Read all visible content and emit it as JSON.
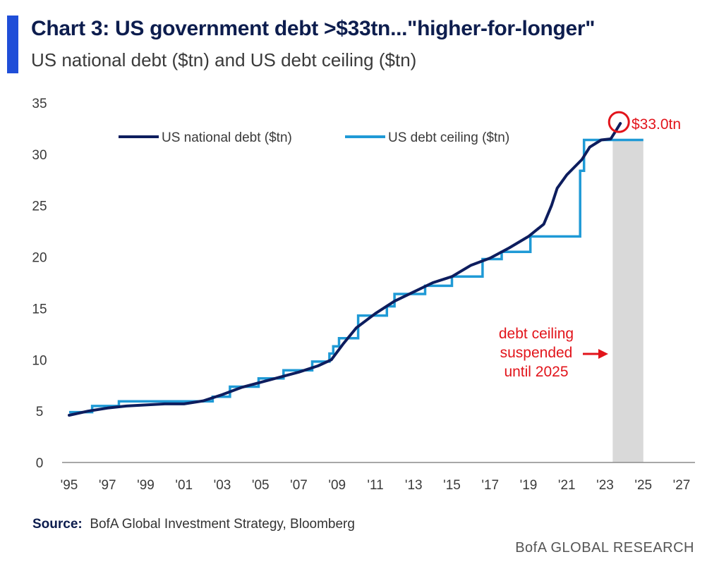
{
  "header": {
    "title": "Chart 3: US government debt >$33tn...\"higher-for-longer\"",
    "subtitle": "US national debt ($tn) and US debt ceiling ($tn)"
  },
  "footer": {
    "source_label": "Source:",
    "source_text": "BofA Global Investment Strategy, Bloomberg",
    "brand": "BofA GLOBAL RESEARCH"
  },
  "colors": {
    "accent": "#1f4ed8",
    "debt": "#0d1d5e",
    "ceiling": "#1f9ad6",
    "annotation": "#e2141b",
    "shade": "#d9d9d9"
  },
  "chart_data": {
    "type": "line",
    "title": "US national debt ($tn) and US debt ceiling ($tn)",
    "xlim": [
      1995,
      2028
    ],
    "ylim": [
      0,
      35
    ],
    "y_ticks": [
      0,
      5,
      10,
      15,
      20,
      25,
      30,
      35
    ],
    "x_ticks": [
      {
        "value": 1995,
        "label": "'95"
      },
      {
        "value": 1997,
        "label": "'97"
      },
      {
        "value": 1999,
        "label": "'99"
      },
      {
        "value": 2001,
        "label": "'01"
      },
      {
        "value": 2003,
        "label": "'03"
      },
      {
        "value": 2005,
        "label": "'05"
      },
      {
        "value": 2007,
        "label": "'07"
      },
      {
        "value": 2009,
        "label": "'09"
      },
      {
        "value": 2011,
        "label": "'11"
      },
      {
        "value": 2013,
        "label": "'13"
      },
      {
        "value": 2015,
        "label": "'15"
      },
      {
        "value": 2017,
        "label": "'17"
      },
      {
        "value": 2019,
        "label": "'19"
      },
      {
        "value": 2021,
        "label": "'21"
      },
      {
        "value": 2023,
        "label": "'23"
      },
      {
        "value": 2025,
        "label": "'25"
      },
      {
        "value": 2027,
        "label": "'27"
      }
    ],
    "grid": false,
    "legend_position": "top",
    "series": [
      {
        "name": "US national debt ($tn)",
        "style": "line",
        "points": [
          [
            1995.0,
            4.6
          ],
          [
            1996.0,
            5.0
          ],
          [
            1997.0,
            5.3
          ],
          [
            1998.0,
            5.5
          ],
          [
            1999.0,
            5.6
          ],
          [
            2000.0,
            5.7
          ],
          [
            2001.0,
            5.7
          ],
          [
            2002.0,
            6.0
          ],
          [
            2003.0,
            6.6
          ],
          [
            2004.0,
            7.3
          ],
          [
            2005.0,
            7.8
          ],
          [
            2006.0,
            8.3
          ],
          [
            2007.0,
            8.8
          ],
          [
            2008.0,
            9.4
          ],
          [
            2008.7,
            10.0
          ],
          [
            2009.3,
            11.5
          ],
          [
            2010.0,
            13.1
          ],
          [
            2011.0,
            14.5
          ],
          [
            2012.0,
            15.7
          ],
          [
            2013.0,
            16.6
          ],
          [
            2014.0,
            17.5
          ],
          [
            2015.0,
            18.1
          ],
          [
            2016.0,
            19.2
          ],
          [
            2017.0,
            19.9
          ],
          [
            2018.0,
            20.9
          ],
          [
            2019.0,
            22.0
          ],
          [
            2019.8,
            23.2
          ],
          [
            2020.2,
            25.0
          ],
          [
            2020.5,
            26.7
          ],
          [
            2021.0,
            28.0
          ],
          [
            2021.8,
            29.5
          ],
          [
            2022.2,
            30.7
          ],
          [
            2022.8,
            31.4
          ],
          [
            2023.3,
            31.5
          ],
          [
            2023.6,
            32.4
          ],
          [
            2023.8,
            33.0
          ]
        ]
      },
      {
        "name": "US debt ceiling ($tn)",
        "style": "step",
        "points": [
          [
            1995.0,
            4.9
          ],
          [
            1996.2,
            4.9
          ],
          [
            1996.2,
            5.5
          ],
          [
            1997.6,
            5.5
          ],
          [
            1997.6,
            5.95
          ],
          [
            2002.5,
            5.95
          ],
          [
            2002.5,
            6.4
          ],
          [
            2003.4,
            6.4
          ],
          [
            2003.4,
            7.38
          ],
          [
            2004.9,
            7.38
          ],
          [
            2004.9,
            8.18
          ],
          [
            2006.2,
            8.18
          ],
          [
            2006.2,
            8.97
          ],
          [
            2007.7,
            8.97
          ],
          [
            2007.7,
            9.82
          ],
          [
            2008.6,
            9.82
          ],
          [
            2008.6,
            10.6
          ],
          [
            2008.8,
            10.6
          ],
          [
            2008.8,
            11.3
          ],
          [
            2009.1,
            11.3
          ],
          [
            2009.1,
            12.1
          ],
          [
            2010.1,
            12.1
          ],
          [
            2010.1,
            14.3
          ],
          [
            2011.6,
            14.3
          ],
          [
            2011.6,
            15.2
          ],
          [
            2012.0,
            15.2
          ],
          [
            2012.0,
            16.4
          ],
          [
            2013.6,
            16.4
          ],
          [
            2013.6,
            17.2
          ],
          [
            2015.0,
            17.2
          ],
          [
            2015.0,
            18.1
          ],
          [
            2016.6,
            18.1
          ],
          [
            2016.6,
            19.8
          ],
          [
            2017.6,
            19.8
          ],
          [
            2017.6,
            20.5
          ],
          [
            2019.1,
            20.5
          ],
          [
            2019.1,
            22.0
          ],
          [
            2021.7,
            22.0
          ],
          [
            2021.7,
            28.4
          ],
          [
            2021.9,
            28.4
          ],
          [
            2021.9,
            31.4
          ],
          [
            2025.0,
            31.4
          ]
        ]
      }
    ],
    "shaded_region": {
      "x_start": 2023.4,
      "x_end": 2025.0
    },
    "annotations": [
      {
        "text": "$33.0tn",
        "x": 2023.8,
        "y": 33.0,
        "circle": true
      },
      {
        "lines": [
          "debt ceiling",
          "suspended",
          "until 2025"
        ],
        "arrow": true
      }
    ]
  }
}
